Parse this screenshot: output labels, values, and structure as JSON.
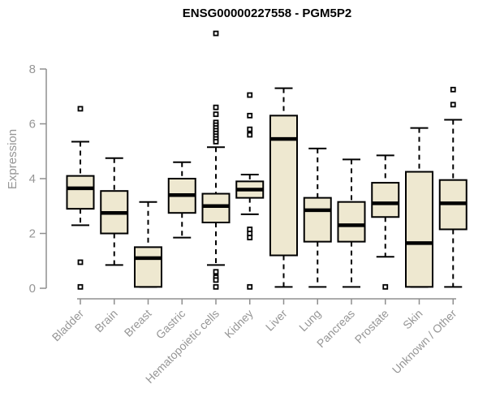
{
  "chart_data": {
    "type": "boxplot",
    "title": "ENSG00000227558 - PGM5P2",
    "ylabel": "Expression",
    "xlabel": "",
    "yticks": [
      0,
      2,
      4,
      6,
      8
    ],
    "ylim": [
      0,
      9.5
    ],
    "grid": false,
    "legend": false,
    "categories": [
      "Bladder",
      "Brain",
      "Breast",
      "Gastric",
      "Hematopoietic cells",
      "Kidney",
      "Liver",
      "Lung",
      "Pancreas",
      "Prostate",
      "Skin",
      "Unknown / Other"
    ],
    "series": [
      {
        "name": "Bladder",
        "whisker_low": 2.3,
        "q1": 2.9,
        "median": 3.65,
        "q3": 4.1,
        "whisker_high": 5.35,
        "outliers": [
          6.55,
          0.95,
          0.05
        ]
      },
      {
        "name": "Brain",
        "whisker_low": 0.85,
        "q1": 2.0,
        "median": 2.75,
        "q3": 3.55,
        "whisker_high": 4.75,
        "outliers": []
      },
      {
        "name": "Breast",
        "whisker_low": 0.05,
        "q1": 0.05,
        "median": 1.1,
        "q3": 1.5,
        "whisker_high": 3.15,
        "outliers": []
      },
      {
        "name": "Gastric",
        "whisker_low": 1.85,
        "q1": 2.75,
        "median": 3.4,
        "q3": 4.0,
        "whisker_high": 4.6,
        "outliers": []
      },
      {
        "name": "Hematopoietic cells",
        "whisker_low": 0.85,
        "q1": 2.4,
        "median": 3.0,
        "q3": 3.45,
        "whisker_high": 5.15,
        "outliers": [
          9.3,
          6.6,
          6.35,
          6.05,
          5.95,
          5.85,
          5.75,
          5.65,
          5.55,
          5.45,
          5.35,
          0.6,
          0.4,
          0.3,
          0.05
        ]
      },
      {
        "name": "Kidney",
        "whisker_low": 2.7,
        "q1": 3.3,
        "median": 3.6,
        "q3": 3.9,
        "whisker_high": 4.15,
        "outliers": [
          7.05,
          6.3,
          5.8,
          5.6,
          2.15,
          2.0,
          1.85,
          0.05
        ]
      },
      {
        "name": "Liver",
        "whisker_low": 0.05,
        "q1": 1.2,
        "median": 5.45,
        "q3": 6.3,
        "whisker_high": 7.3,
        "outliers": []
      },
      {
        "name": "Lung",
        "whisker_low": 0.05,
        "q1": 1.7,
        "median": 2.85,
        "q3": 3.3,
        "whisker_high": 5.1,
        "outliers": []
      },
      {
        "name": "Pancreas",
        "whisker_low": 0.05,
        "q1": 1.7,
        "median": 2.3,
        "q3": 3.15,
        "whisker_high": 4.7,
        "outliers": []
      },
      {
        "name": "Prostate",
        "whisker_low": 1.15,
        "q1": 2.6,
        "median": 3.1,
        "q3": 3.85,
        "whisker_high": 4.85,
        "outliers": [
          0.05
        ]
      },
      {
        "name": "Skin",
        "whisker_low": 0.05,
        "q1": 0.05,
        "median": 1.65,
        "q3": 4.25,
        "whisker_high": 5.85,
        "outliers": []
      },
      {
        "name": "Unknown / Other",
        "whisker_low": 0.05,
        "q1": 2.15,
        "median": 3.1,
        "q3": 3.95,
        "whisker_high": 6.15,
        "outliers": [
          7.25,
          6.7
        ]
      }
    ],
    "colors": {
      "box_fill": "#EEE8D0",
      "box_stroke": "#000000",
      "median": "#000000",
      "whisker": "#000000",
      "axis": "#8F8F8F",
      "text": "#969696",
      "outlier_fill": "#FFFFFF",
      "background": "#FFFFFF"
    }
  }
}
